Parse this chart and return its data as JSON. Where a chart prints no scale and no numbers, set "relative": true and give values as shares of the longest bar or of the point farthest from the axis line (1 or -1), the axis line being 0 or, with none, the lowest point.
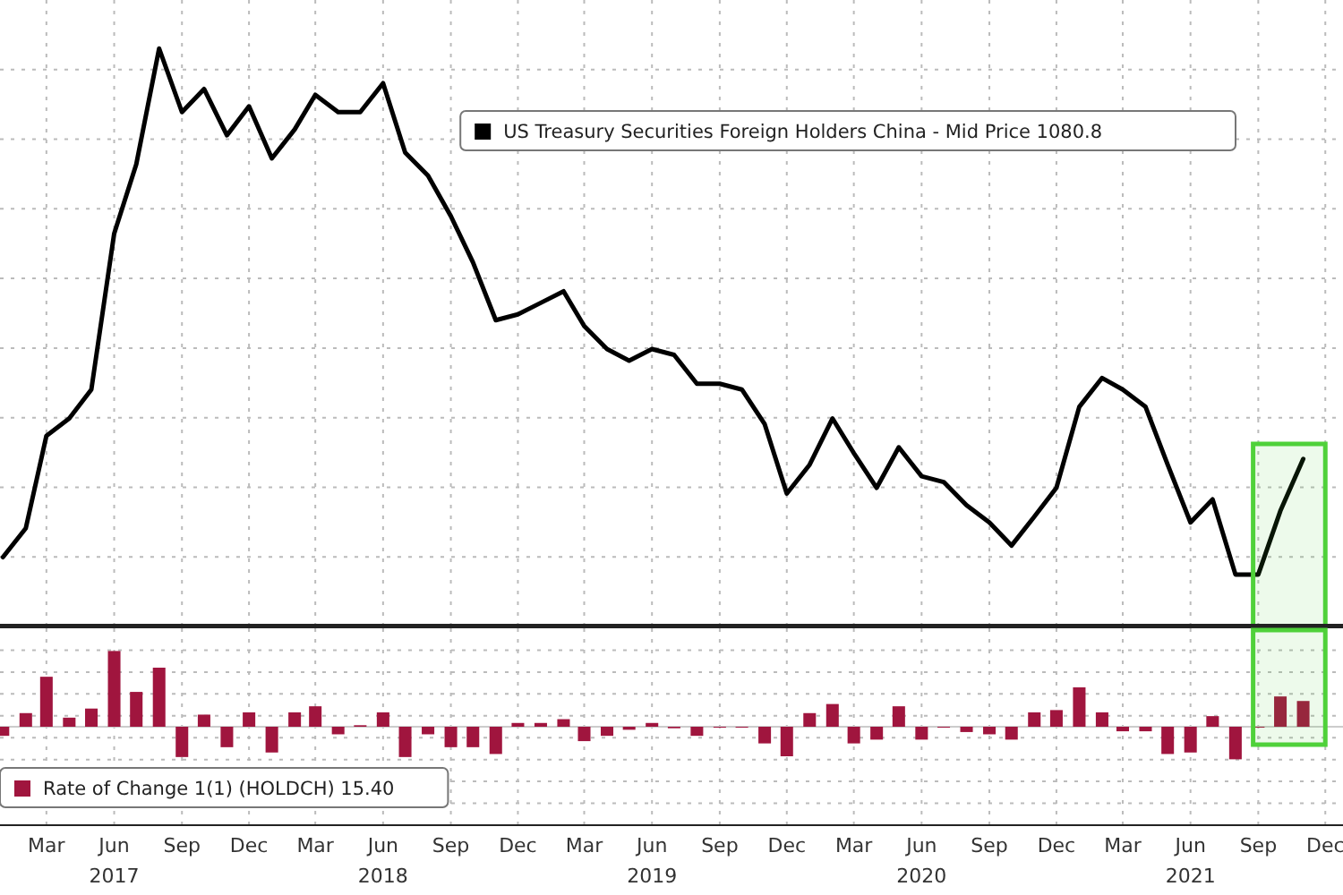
{
  "chart_data": [
    {
      "type": "line",
      "relative": true,
      "tick_labels": false,
      "grid": true,
      "legend": "top right",
      "xlim": [
        "2016-12-28",
        "2021-12-25"
      ],
      "x": [
        "2017-01",
        "2017-02",
        "2017-03",
        "2017-04",
        "2017-05",
        "2017-06",
        "2017-07",
        "2017-08",
        "2017-09",
        "2017-10",
        "2017-11",
        "2017-12",
        "2018-01",
        "2018-02",
        "2018-03",
        "2018-04",
        "2018-05",
        "2018-06",
        "2018-07",
        "2018-08",
        "2018-09",
        "2018-10",
        "2018-11",
        "2018-12",
        "2019-01",
        "2019-02",
        "2019-03",
        "2019-04",
        "2019-05",
        "2019-06",
        "2019-07",
        "2019-08",
        "2019-09",
        "2019-10",
        "2019-11",
        "2019-12",
        "2020-01",
        "2020-02",
        "2020-03",
        "2020-04",
        "2020-05",
        "2020-06",
        "2020-07",
        "2020-08",
        "2020-09",
        "2020-10",
        "2020-11",
        "2020-12",
        "2021-01",
        "2021-02",
        "2021-03",
        "2021-04",
        "2021-05",
        "2021-06",
        "2021-07",
        "2021-08",
        "2021-09",
        "2021-10",
        "2021-11"
      ],
      "xticks": [
        {
          "value": "2017-03",
          "label": null
        },
        {
          "value": "2017-06",
          "label": null
        },
        {
          "value": "2017-09",
          "label": null
        },
        {
          "value": "2017-12",
          "label": null
        },
        {
          "value": "2018-03",
          "label": null
        },
        {
          "value": "2018-06",
          "label": null
        },
        {
          "value": "2018-09",
          "label": null
        },
        {
          "value": "2018-12",
          "label": null
        },
        {
          "value": "2019-03",
          "label": null
        },
        {
          "value": "2019-06",
          "label": null
        },
        {
          "value": "2019-09",
          "label": null
        },
        {
          "value": "2019-12",
          "label": null
        },
        {
          "value": "2020-03",
          "label": null
        },
        {
          "value": "2020-06",
          "label": null
        },
        {
          "value": "2020-09",
          "label": null
        },
        {
          "value": "2020-12",
          "label": null
        },
        {
          "value": "2021-03",
          "label": null
        },
        {
          "value": "2021-06",
          "label": null
        },
        {
          "value": "2021-09",
          "label": null
        },
        {
          "value": "2021-12",
          "label": null
        }
      ],
      "bands": [
        {
          "axis": "x",
          "from": "2021-08-25",
          "to": "2021-12",
          "color": "#4fd13a"
        }
      ],
      "series": [
        {
          "name": "US Treasury Securities Foreign Holders China - Mid Price 1080.8",
          "color": "#000000",
          "values": [
            0.12,
            0.17,
            0.33,
            0.36,
            0.41,
            0.68,
            0.8,
            1,
            0.89,
            0.93,
            0.85,
            0.9,
            0.81,
            0.86,
            0.92,
            0.89,
            0.89,
            0.94,
            0.82,
            0.78,
            0.71,
            0.63,
            0.53,
            0.54,
            0.56,
            0.58,
            0.52,
            0.48,
            0.46,
            0.48,
            0.47,
            0.42,
            0.42,
            0.41,
            0.35,
            0.23,
            0.28,
            0.36,
            0.3,
            0.24,
            0.31,
            0.26,
            0.25,
            0.21,
            0.18,
            0.14,
            0.19,
            0.24,
            0.38,
            0.43,
            0.41,
            0.38,
            0.28,
            0.18,
            0.22,
            0.09,
            0.09,
            0.2,
            0.29
          ]
        }
      ]
    },
    {
      "type": "bar",
      "relative": true,
      "tick_labels": "x",
      "grid": true,
      "legend": "bottom left",
      "xlim": [
        "2016-12-28",
        "2021-12-25"
      ],
      "x": [
        "2017-01",
        "2017-02",
        "2017-03",
        "2017-04",
        "2017-05",
        "2017-06",
        "2017-07",
        "2017-08",
        "2017-09",
        "2017-10",
        "2017-11",
        "2017-12",
        "2018-01",
        "2018-02",
        "2018-03",
        "2018-04",
        "2018-05",
        "2018-06",
        "2018-07",
        "2018-08",
        "2018-09",
        "2018-10",
        "2018-11",
        "2018-12",
        "2019-01",
        "2019-02",
        "2019-03",
        "2019-04",
        "2019-05",
        "2019-06",
        "2019-07",
        "2019-08",
        "2019-09",
        "2019-10",
        "2019-11",
        "2019-12",
        "2020-01",
        "2020-02",
        "2020-03",
        "2020-04",
        "2020-05",
        "2020-06",
        "2020-07",
        "2020-08",
        "2020-09",
        "2020-10",
        "2020-11",
        "2020-12",
        "2021-01",
        "2021-02",
        "2021-03",
        "2021-04",
        "2021-05",
        "2021-06",
        "2021-07",
        "2021-08",
        "2021-09",
        "2021-10",
        "2021-11"
      ],
      "xticks": [
        {
          "value": "2017-03",
          "label": "Mar"
        },
        {
          "value": "2017-06",
          "label": "Jun\n2017"
        },
        {
          "value": "2017-09",
          "label": "Sep"
        },
        {
          "value": "2017-12",
          "label": "Dec"
        },
        {
          "value": "2018-03",
          "label": "Mar"
        },
        {
          "value": "2018-06",
          "label": "Jun\n2018"
        },
        {
          "value": "2018-09",
          "label": "Sep"
        },
        {
          "value": "2018-12",
          "label": "Dec"
        },
        {
          "value": "2019-03",
          "label": "Mar"
        },
        {
          "value": "2019-06",
          "label": "Jun\n2019"
        },
        {
          "value": "2019-09",
          "label": "Sep"
        },
        {
          "value": "2019-12",
          "label": "Dec"
        },
        {
          "value": "2020-03",
          "label": "Mar"
        },
        {
          "value": "2020-06",
          "label": "Jun\n2020"
        },
        {
          "value": "2020-09",
          "label": "Sep"
        },
        {
          "value": "2020-12",
          "label": "Dec"
        },
        {
          "value": "2021-03",
          "label": "Mar"
        },
        {
          "value": "2021-06",
          "label": "Jun\n2021"
        },
        {
          "value": "2021-09",
          "label": "Sep"
        },
        {
          "value": "2021-12",
          "label": "Dec"
        }
      ],
      "bands": [
        {
          "axis": "x",
          "from": "2021-08-25",
          "to": "2021-12",
          "color": "#4fd13a"
        }
      ],
      "series": [
        {
          "name": "Rate of Change 1(1) (HOLDCH) 15.40",
          "color": "#a0153e",
          "values": [
            -0.12,
            0.18,
            0.66,
            0.12,
            0.24,
            1,
            0.46,
            0.78,
            -0.4,
            0.16,
            -0.27,
            0.19,
            -0.34,
            0.19,
            0.27,
            -0.1,
            0.02,
            0.19,
            -0.4,
            -0.1,
            -0.27,
            -0.27,
            -0.36,
            0.05,
            0.05,
            0.1,
            -0.19,
            -0.12,
            -0.04,
            0.05,
            -0.02,
            -0.12,
            0,
            0,
            -0.22,
            -0.39,
            0.18,
            0.3,
            -0.22,
            -0.17,
            0.27,
            -0.17,
            -0.01,
            -0.07,
            -0.1,
            -0.17,
            0.19,
            0.22,
            0.52,
            0.19,
            -0.06,
            -0.06,
            -0.36,
            -0.34,
            0.14,
            -0.43,
            0,
            0.4,
            0.34
          ]
        }
      ]
    }
  ]
}
